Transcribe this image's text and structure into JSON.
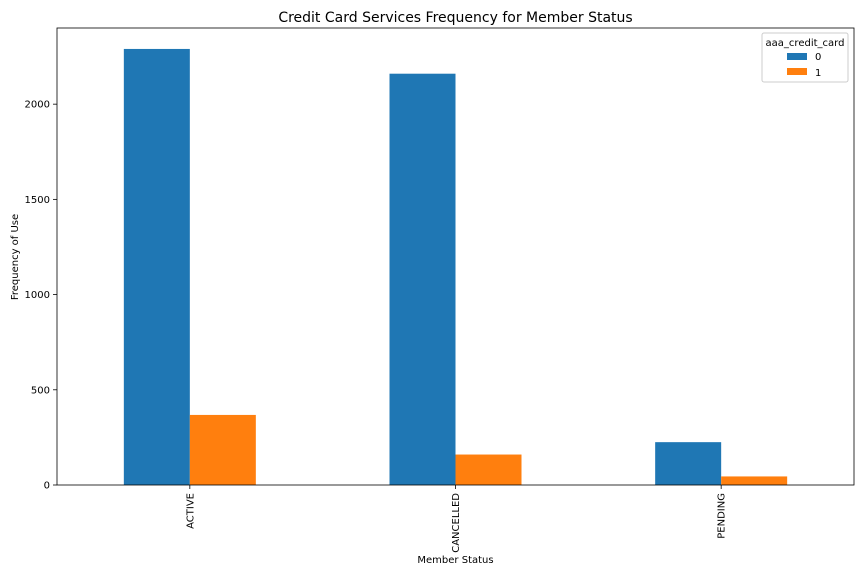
{
  "chart_data": {
    "type": "bar",
    "title": "Credit Card Services Frequency for Member Status",
    "xlabel": "Member Status",
    "ylabel": "Frequency of Use",
    "categories": [
      "ACTIVE",
      "CANCELLED",
      "PENDING"
    ],
    "series": [
      {
        "name": "0",
        "values": [
          2290,
          2160,
          225
        ],
        "color": "#1f77b4"
      },
      {
        "name": "1",
        "values": [
          368,
          160,
          45
        ],
        "color": "#ff7f0e"
      }
    ],
    "yticks": [
      0,
      500,
      1000,
      1500,
      2000
    ],
    "ylim": [
      0,
      2400
    ],
    "legend": {
      "title": "aaa_credit_card",
      "placement": "top-right"
    },
    "grid": false
  }
}
